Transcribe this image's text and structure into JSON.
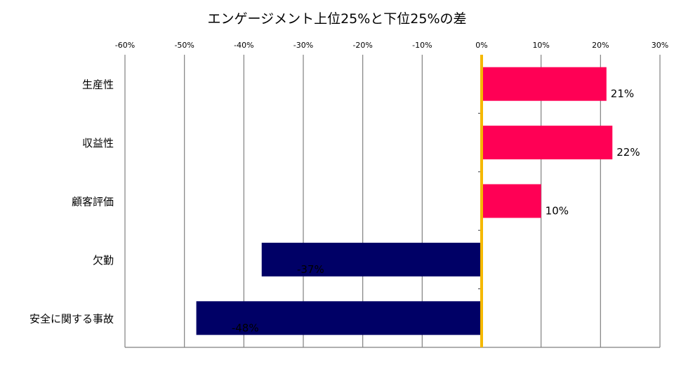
{
  "chart_data": {
    "type": "bar",
    "orientation": "horizontal",
    "title": "エンゲージメント上位25%と下位25%の差",
    "categories": [
      "生産性",
      "収益性",
      "顧客評価",
      "欠勤",
      "安全に関する事故"
    ],
    "values": [
      21,
      22,
      10,
      -37,
      -48
    ],
    "value_labels": [
      "21%",
      "22%",
      "10%",
      "-37%",
      "-48%"
    ],
    "xlim": [
      -60,
      30
    ],
    "xticks": [
      -60,
      -50,
      -40,
      -30,
      -20,
      -10,
      0,
      10,
      20,
      30
    ],
    "xtick_labels": [
      "-60%",
      "-50%",
      "-40%",
      "-30%",
      "-20%",
      "-10%",
      "0%",
      "10%",
      "20%",
      "30%"
    ],
    "xaxis_position": "top",
    "grid": true,
    "legend": "none",
    "colors": {
      "positive": "#FF0055",
      "negative": "#000066",
      "zero_line": "#F5B800",
      "grid": "#808080"
    }
  }
}
